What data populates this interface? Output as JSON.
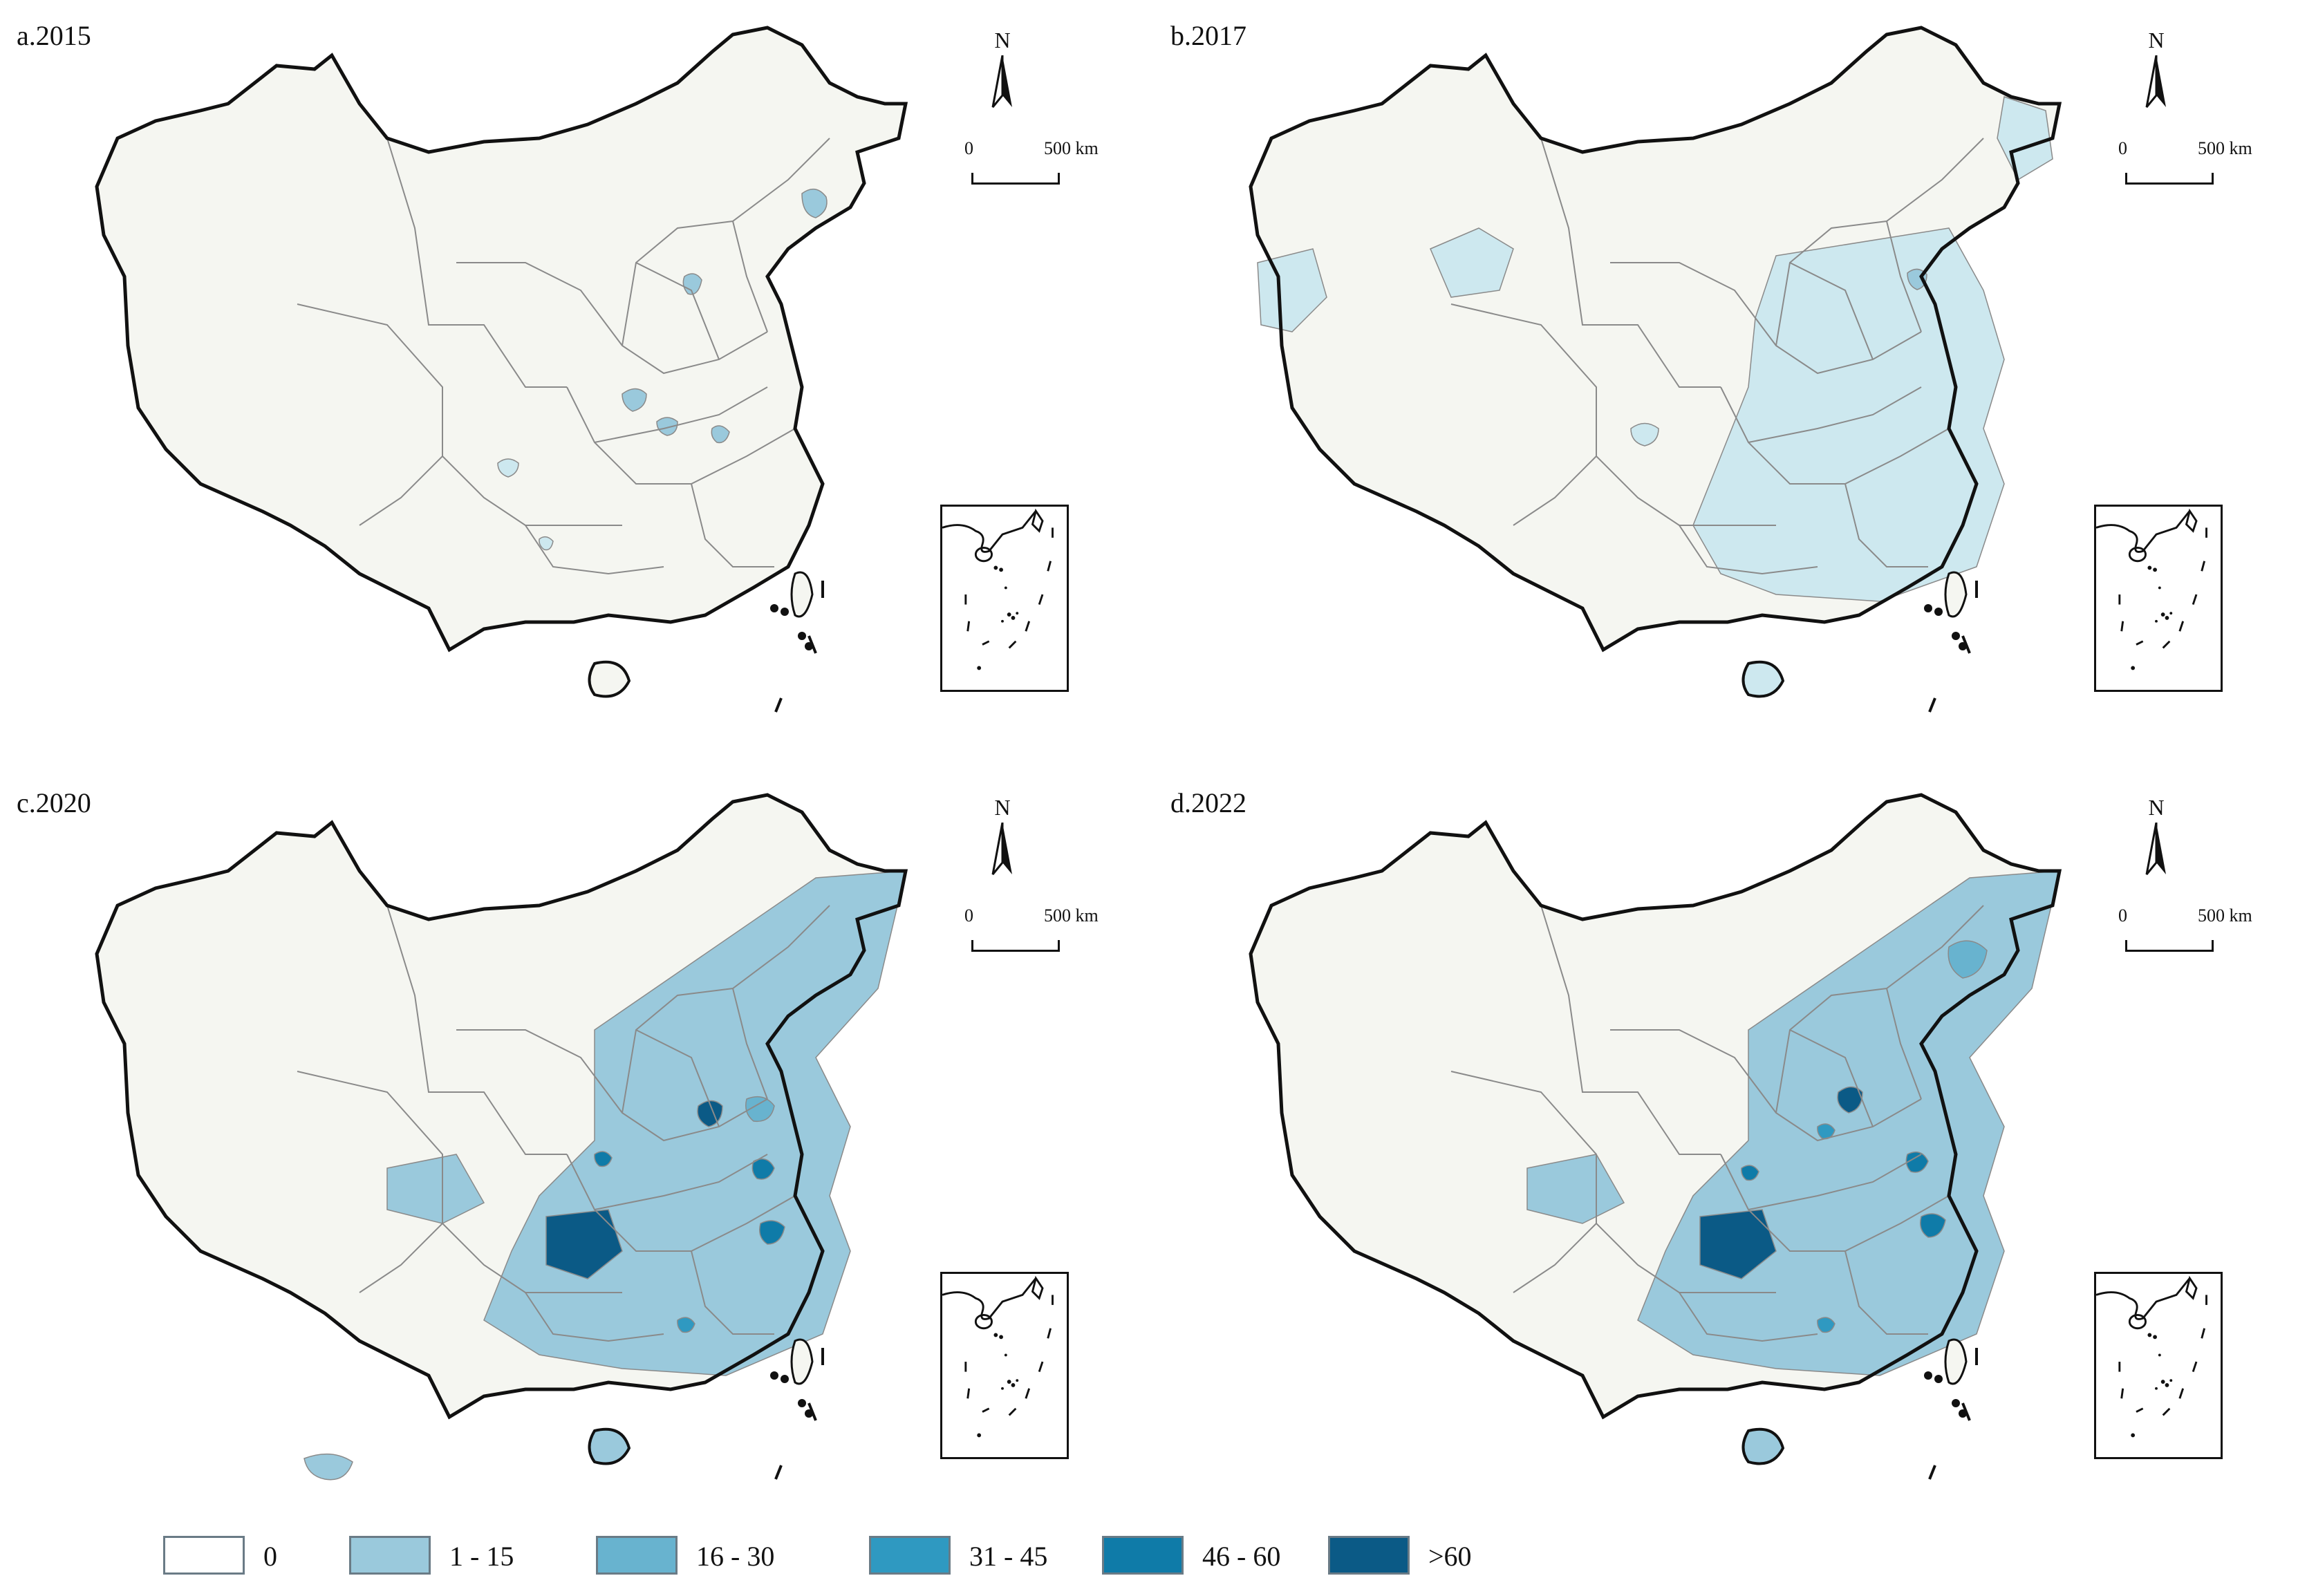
{
  "panels": [
    {
      "key": "a",
      "label": "a.2015"
    },
    {
      "key": "b",
      "label": "b.2017"
    },
    {
      "key": "c",
      "label": "c.2020"
    },
    {
      "key": "d",
      "label": "d.2022"
    }
  ],
  "north_label": "N",
  "scale": {
    "start": "0",
    "end": "500 km"
  },
  "legend": [
    {
      "label": "0",
      "color": "#ffffff"
    },
    {
      "label": "1 - 15",
      "color": "#9ac9dc"
    },
    {
      "label": "16 - 30",
      "color": "#68b3cf"
    },
    {
      "label": "31 - 45",
      "color": "#2f99c1"
    },
    {
      "label": "46 - 60",
      "color": "#0f7ba8"
    },
    {
      "label": ">60",
      "color": "#0b5a86"
    }
  ],
  "colors": {
    "land_base": "#f5f6f1",
    "boundary": "#8a8a8a",
    "national_border": "#111111",
    "level_1": "#cde8ef",
    "level_2": "#9ac9dc",
    "level_3": "#68b3cf",
    "level_4": "#2f99c1",
    "level_5": "#0f7ba8",
    "level_6": "#0b5a86"
  }
}
